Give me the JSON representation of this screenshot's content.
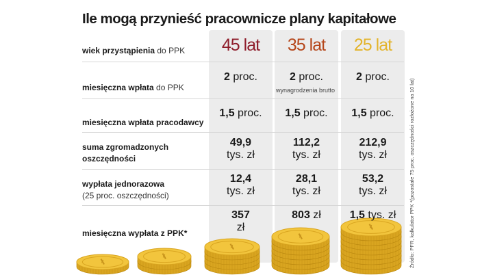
{
  "title": "Ile mogą przynieść pracownicze plany kapitałowe",
  "columns": [
    {
      "label": "45 lat",
      "color": "#8e1c2a"
    },
    {
      "label": "35 lat",
      "color": "#b5461a"
    },
    {
      "label": "25 lat",
      "color": "#e3b42c"
    }
  ],
  "rows": {
    "age": {
      "bold": "wiek przystąpienia",
      "light": " do PPK"
    },
    "monthly_contribution": {
      "bold": "miesięczna wpłata",
      "light": " do PPK",
      "values": [
        {
          "num": "2",
          "unit": " proc."
        },
        {
          "num": "2",
          "unit": " proc."
        },
        {
          "num": "2",
          "unit": " proc."
        }
      ],
      "note": "wynagrodzenia brutto"
    },
    "employer_contribution": {
      "bold": "miesięczna wpłata pracodawcy",
      "values": [
        {
          "num": "1,5",
          "unit": " proc."
        },
        {
          "num": "1,5",
          "unit": " proc."
        },
        {
          "num": "1,5",
          "unit": " proc."
        }
      ]
    },
    "savings": {
      "bold_line1": "suma zgromadzonych",
      "bold_line2": "oszczędności",
      "values": [
        {
          "num": "49,9",
          "unit": "tys. zł"
        },
        {
          "num": "112,2",
          "unit": "tys. zł"
        },
        {
          "num": "212,9",
          "unit": "tys. zł"
        }
      ]
    },
    "lump_sum": {
      "bold": "wypłata jednorazowa",
      "light": "(25 proc. oszczędności)",
      "values": [
        {
          "num": "12,4",
          "unit": "tys. zł"
        },
        {
          "num": "28,1",
          "unit": "tys. zł"
        },
        {
          "num": "53,2",
          "unit": "tys. zł"
        }
      ]
    },
    "monthly_payout": {
      "bold": "miesięczna wypłata z PPK*",
      "values": [
        {
          "num": "357",
          "unit": "zł"
        },
        {
          "num": "803",
          "unit": " zł"
        },
        {
          "num": "1,5",
          "unit": " tys. zł"
        }
      ]
    }
  },
  "source": "Źródło: PFR, kalkulator PPK *(pozostałe 75 proc. oszczędności rozłożone na 10 lat)",
  "coin_colors": {
    "face": "#f2c53d",
    "edge": "#d9a520",
    "dark": "#b8860f",
    "symbol": "#c9951c"
  }
}
